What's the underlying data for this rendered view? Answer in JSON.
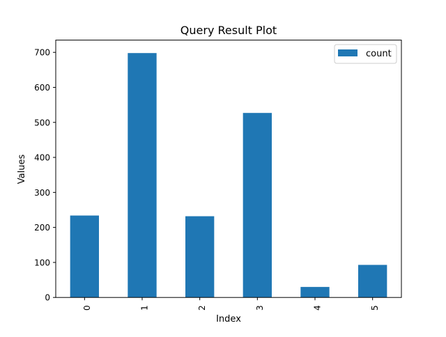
{
  "chart_data": {
    "type": "bar",
    "title": "Query Result Plot",
    "xlabel": "Index",
    "ylabel": "Values",
    "categories": [
      "0",
      "1",
      "2",
      "3",
      "4",
      "5"
    ],
    "series": [
      {
        "name": "count",
        "values": [
          234,
          698,
          232,
          527,
          30,
          93
        ],
        "color": "#1f77b4"
      }
    ],
    "ylim": [
      0,
      735
    ],
    "yticks": [
      0,
      100,
      200,
      300,
      400,
      500,
      600,
      700
    ],
    "legend": {
      "position": "top-right"
    },
    "grid": false
  }
}
